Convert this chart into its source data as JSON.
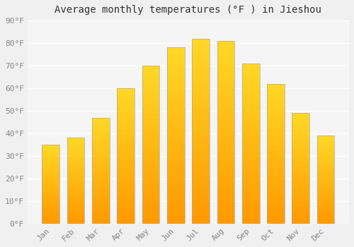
{
  "title": "Average monthly temperatures (°F ) in Jieshou",
  "months": [
    "Jan",
    "Feb",
    "Mar",
    "Apr",
    "May",
    "Jun",
    "Jul",
    "Aug",
    "Sep",
    "Oct",
    "Nov",
    "Dec"
  ],
  "values": [
    35,
    38,
    47,
    60,
    70,
    78,
    82,
    81,
    71,
    62,
    49,
    39
  ],
  "bar_color": "#FFA500",
  "bar_color_light": "#FFD060",
  "bar_edge_color": "#aaaaaa",
  "ylim": [
    0,
    90
  ],
  "yticks": [
    0,
    10,
    20,
    30,
    40,
    50,
    60,
    70,
    80,
    90
  ],
  "ytick_labels": [
    "0°F",
    "10°F",
    "20°F",
    "30°F",
    "40°F",
    "50°F",
    "60°F",
    "70°F",
    "80°F",
    "90°F"
  ],
  "background_color": "#f0f0f0",
  "plot_bg_color": "#f5f5f5",
  "grid_color": "#ffffff",
  "title_fontsize": 10,
  "tick_fontsize": 8,
  "tick_color": "#888888",
  "title_color": "#333333"
}
